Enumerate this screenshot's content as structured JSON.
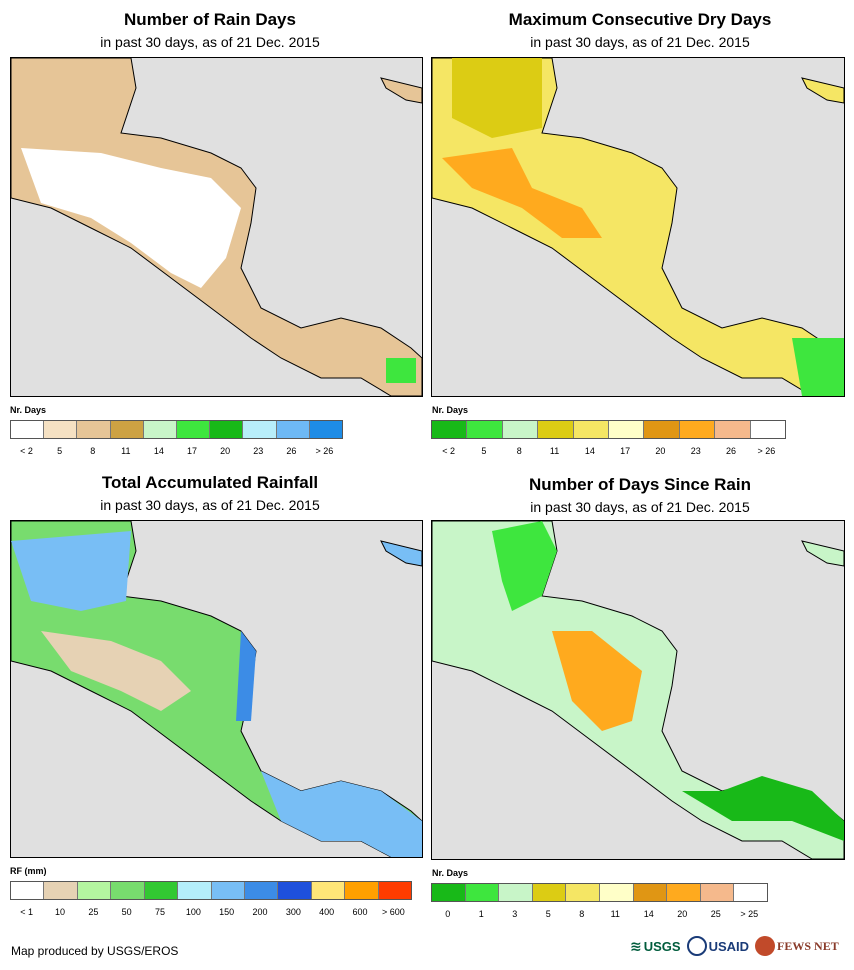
{
  "panels": [
    {
      "id": "rain-days",
      "title": "Number of Rain Days",
      "subtitle": "in past 30 days, as of 21 Dec. 2015",
      "legend": {
        "title": "Nr. Days",
        "colors": [
          "#ffffff",
          "#f5e1c3",
          "#e6c597",
          "#cda243",
          "#c8f5c8",
          "#3ee63e",
          "#18b918",
          "#b8eefa",
          "#6eb9f5",
          "#1e8ce6"
        ],
        "labels": [
          "< 2",
          "5",
          "8",
          "11",
          "14",
          "17",
          "20",
          "23",
          "26",
          "> 26"
        ]
      }
    },
    {
      "id": "max-dry",
      "title": "Maximum Consecutive Dry Days",
      "subtitle": "in past 30 days, as of 21 Dec. 2015",
      "legend": {
        "title": "Nr. Days",
        "colors": [
          "#18b918",
          "#3ee63e",
          "#c8f5c8",
          "#dccc14",
          "#f5e664",
          "#ffffc8",
          "#e09614",
          "#ffaa1e",
          "#f5b98c",
          "#ffffff"
        ],
        "labels": [
          "< 2",
          "5",
          "8",
          "11",
          "14",
          "17",
          "20",
          "23",
          "26",
          "> 26"
        ]
      }
    },
    {
      "id": "total-rain",
      "title": "Total Accumulated Rainfall",
      "subtitle": "in past 30 days, as of 21 Dec. 2015",
      "legend": {
        "title": "RF (mm)",
        "colors": [
          "#ffffff",
          "#e6d2b4",
          "#b4f5a0",
          "#78dc6e",
          "#32c832",
          "#b4eefa",
          "#78bef5",
          "#3c8ce6",
          "#1e50dc",
          "#ffe678",
          "#ffa000",
          "#ff3c00"
        ],
        "labels": [
          "< 1",
          "10",
          "25",
          "50",
          "75",
          "100",
          "150",
          "200",
          "300",
          "400",
          "600",
          "> 600"
        ]
      }
    },
    {
      "id": "days-since",
      "title": "Number of Days Since Rain",
      "subtitle": "in past 30 days, as of 21 Dec. 2015",
      "legend": {
        "title": "Nr. Days",
        "colors": [
          "#18b918",
          "#3ee63e",
          "#c8f5c8",
          "#dccc14",
          "#f5e664",
          "#ffffc8",
          "#e09614",
          "#ffaa1e",
          "#f5b98c",
          "#ffffff"
        ],
        "labels": [
          "0",
          "1",
          "3",
          "5",
          "8",
          "11",
          "14",
          "20",
          "25",
          "> 25"
        ]
      }
    }
  ],
  "footer": "Map produced by USGS/EROS",
  "logos": {
    "usgs": "USGS",
    "usaid": "USAID",
    "fews": "FEWS NET"
  }
}
